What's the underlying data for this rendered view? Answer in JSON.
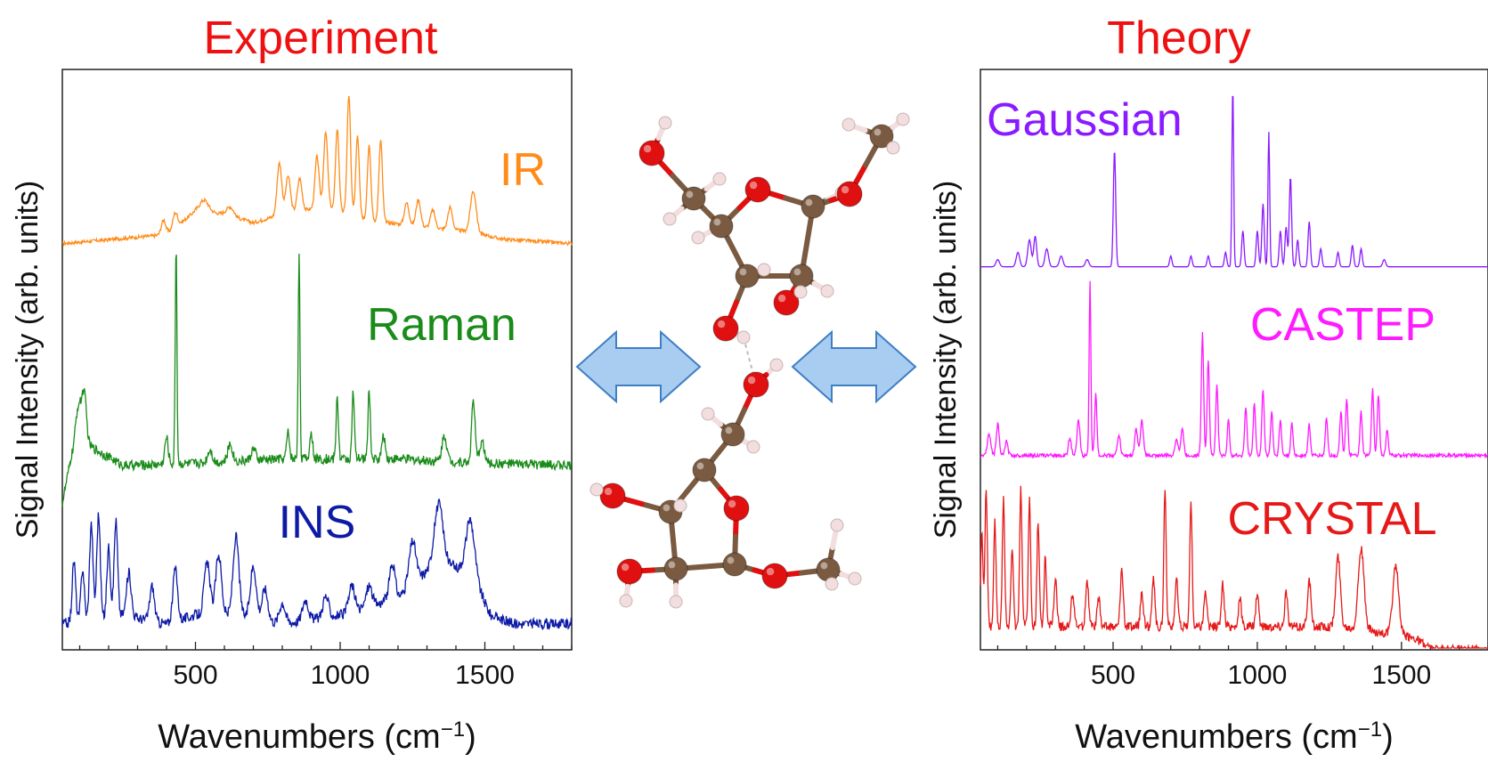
{
  "colors": {
    "IR": "#ff8c1a",
    "Raman": "#1a8c1a",
    "INS": "#0d1aa6",
    "Gaussian": "#8a1aff",
    "CASTEP": "#ff1aff",
    "CRYSTAL": "#e61919",
    "title": "#ee1111",
    "arrow_fill": "#a8cdf0",
    "arrow_stroke": "#3f7fc4",
    "carbon": "#7a5a40",
    "oxygen": "#e01010",
    "hydrogen": "#f2dede"
  },
  "chart_data": [
    {
      "type": "line",
      "title": "Experiment",
      "xlabel": "Wavenumbers (cm⁻¹)",
      "ylabel": "Signal Intensity (arb. units)",
      "xlim": [
        40,
        1800
      ],
      "xticks": [
        "500",
        "1000",
        "1500"
      ],
      "yticks": false,
      "series": [
        {
          "name": "IR",
          "offset": 0.7,
          "scale": 0.255,
          "baseline": [
            [
              40,
              0.0
            ],
            [
              400,
              0.06
            ],
            [
              500,
              0.22
            ],
            [
              600,
              0.2
            ],
            [
              700,
              0.14
            ],
            [
              800,
              0.2
            ],
            [
              950,
              0.25
            ],
            [
              1100,
              0.16
            ],
            [
              1250,
              0.12
            ],
            [
              1450,
              0.08
            ],
            [
              1560,
              0.03
            ],
            [
              1800,
              0.0
            ]
          ],
          "peaks": [
            [
              390,
              0.1,
              8
            ],
            [
              430,
              0.1,
              8
            ],
            [
              530,
              0.08,
              15
            ],
            [
              620,
              0.06,
              12
            ],
            [
              790,
              0.35,
              8
            ],
            [
              820,
              0.25,
              8
            ],
            [
              860,
              0.22,
              8
            ],
            [
              920,
              0.35,
              7
            ],
            [
              950,
              0.5,
              7
            ],
            [
              990,
              0.55,
              6
            ],
            [
              1030,
              0.8,
              6
            ],
            [
              1060,
              0.55,
              6
            ],
            [
              1100,
              0.5,
              6
            ],
            [
              1140,
              0.55,
              6
            ],
            [
              1230,
              0.15,
              8
            ],
            [
              1270,
              0.18,
              8
            ],
            [
              1320,
              0.12,
              8
            ],
            [
              1380,
              0.15,
              8
            ],
            [
              1460,
              0.28,
              10
            ]
          ],
          "noise": 0.012
        },
        {
          "name": "Raman",
          "offset": 0.31,
          "scale": 0.38,
          "baseline": [
            [
              40,
              -0.15
            ],
            [
              70,
              0.05
            ],
            [
              120,
              0.12
            ],
            [
              250,
              0.02
            ],
            [
              500,
              0.03
            ],
            [
              800,
              0.05
            ],
            [
              1200,
              0.05
            ],
            [
              1500,
              0.03
            ],
            [
              1800,
              0.02
            ]
          ],
          "peaks": [
            [
              95,
              0.2,
              10
            ],
            [
              115,
              0.22,
              8
            ],
            [
              400,
              0.12,
              6
            ],
            [
              433,
              1.0,
              3
            ],
            [
              550,
              0.06,
              8
            ],
            [
              620,
              0.08,
              8
            ],
            [
              700,
              0.05,
              8
            ],
            [
              820,
              0.12,
              5
            ],
            [
              858,
              0.95,
              3
            ],
            [
              900,
              0.12,
              5
            ],
            [
              990,
              0.28,
              4
            ],
            [
              1045,
              0.3,
              4
            ],
            [
              1100,
              0.32,
              4
            ],
            [
              1150,
              0.1,
              6
            ],
            [
              1360,
              0.12,
              8
            ],
            [
              1460,
              0.28,
              6
            ],
            [
              1490,
              0.1,
              8
            ]
          ],
          "noise": 0.022
        },
        {
          "name": "INS",
          "offset": 0.03,
          "scale": 0.3,
          "baseline": [
            [
              40,
              0.05
            ],
            [
              250,
              0.1
            ],
            [
              400,
              0.05
            ],
            [
              500,
              0.1
            ],
            [
              650,
              0.1
            ],
            [
              800,
              0.05
            ],
            [
              1000,
              0.1
            ],
            [
              1200,
              0.2
            ],
            [
              1300,
              0.35
            ],
            [
              1350,
              0.4
            ],
            [
              1450,
              0.35
            ],
            [
              1520,
              0.1
            ],
            [
              1600,
              0.05
            ],
            [
              1800,
              0.05
            ]
          ],
          "peaks": [
            [
              80,
              0.35,
              6
            ],
            [
              110,
              0.3,
              6
            ],
            [
              140,
              0.55,
              6
            ],
            [
              165,
              0.6,
              6
            ],
            [
              200,
              0.4,
              6
            ],
            [
              225,
              0.55,
              6
            ],
            [
              270,
              0.25,
              8
            ],
            [
              350,
              0.2,
              8
            ],
            [
              430,
              0.3,
              8
            ],
            [
              540,
              0.3,
              10
            ],
            [
              580,
              0.35,
              10
            ],
            [
              640,
              0.45,
              10
            ],
            [
              700,
              0.3,
              10
            ],
            [
              740,
              0.18,
              10
            ],
            [
              800,
              0.12,
              10
            ],
            [
              880,
              0.12,
              10
            ],
            [
              950,
              0.12,
              10
            ],
            [
              1040,
              0.15,
              10
            ],
            [
              1100,
              0.12,
              10
            ],
            [
              1180,
              0.2,
              10
            ],
            [
              1250,
              0.25,
              12
            ],
            [
              1340,
              0.35,
              15
            ],
            [
              1450,
              0.3,
              15
            ]
          ],
          "noise": 0.03
        }
      ]
    },
    {
      "type": "line",
      "title": "Theory",
      "xlabel": "Wavenumbers (cm⁻¹)",
      "ylabel": "Signal Intensity (arb. units)",
      "xlim": [
        40,
        1800
      ],
      "xticks": [
        "500",
        "1000",
        "1500"
      ],
      "yticks": false,
      "series": [
        {
          "name": "Gaussian",
          "offset": 0.66,
          "scale": 0.31,
          "baseline": [
            [
              40,
              0.0
            ],
            [
              1800,
              0.0
            ]
          ],
          "peaks": [
            [
              100,
              0.04,
              6
            ],
            [
              170,
              0.08,
              6
            ],
            [
              210,
              0.15,
              6
            ],
            [
              230,
              0.17,
              5
            ],
            [
              270,
              0.1,
              6
            ],
            [
              320,
              0.06,
              6
            ],
            [
              410,
              0.04,
              6
            ],
            [
              505,
              0.65,
              4
            ],
            [
              700,
              0.06,
              4
            ],
            [
              770,
              0.06,
              4
            ],
            [
              830,
              0.06,
              4
            ],
            [
              890,
              0.08,
              4
            ],
            [
              915,
              1.0,
              3
            ],
            [
              950,
              0.2,
              4
            ],
            [
              1000,
              0.2,
              4
            ],
            [
              1020,
              0.35,
              4
            ],
            [
              1040,
              0.75,
              3
            ],
            [
              1080,
              0.2,
              4
            ],
            [
              1100,
              0.22,
              4
            ],
            [
              1115,
              0.5,
              4
            ],
            [
              1140,
              0.15,
              4
            ],
            [
              1180,
              0.25,
              4
            ],
            [
              1220,
              0.1,
              4
            ],
            [
              1280,
              0.08,
              4
            ],
            [
              1330,
              0.12,
              4
            ],
            [
              1360,
              0.1,
              4
            ],
            [
              1440,
              0.04,
              5
            ]
          ],
          "noise": 0.0
        },
        {
          "name": "CASTEP",
          "offset": 0.335,
          "scale": 0.3,
          "baseline": [
            [
              40,
              0.0
            ],
            [
              1560,
              0.0
            ],
            [
              1800,
              0.0
            ]
          ],
          "peaks": [
            [
              70,
              0.12,
              6
            ],
            [
              100,
              0.18,
              5
            ],
            [
              130,
              0.08,
              5
            ],
            [
              350,
              0.1,
              5
            ],
            [
              380,
              0.2,
              5
            ],
            [
              420,
              1.0,
              3
            ],
            [
              440,
              0.35,
              4
            ],
            [
              520,
              0.12,
              5
            ],
            [
              580,
              0.15,
              5
            ],
            [
              600,
              0.2,
              5
            ],
            [
              720,
              0.1,
              5
            ],
            [
              740,
              0.15,
              5
            ],
            [
              810,
              0.7,
              4
            ],
            [
              830,
              0.55,
              4
            ],
            [
              860,
              0.4,
              4
            ],
            [
              900,
              0.2,
              4
            ],
            [
              960,
              0.28,
              4
            ],
            [
              990,
              0.3,
              4
            ],
            [
              1020,
              0.38,
              4
            ],
            [
              1050,
              0.25,
              4
            ],
            [
              1080,
              0.2,
              4
            ],
            [
              1120,
              0.18,
              4
            ],
            [
              1180,
              0.18,
              4
            ],
            [
              1240,
              0.22,
              4
            ],
            [
              1290,
              0.25,
              4
            ],
            [
              1310,
              0.32,
              4
            ],
            [
              1360,
              0.25,
              4
            ],
            [
              1400,
              0.38,
              4
            ],
            [
              1420,
              0.35,
              4
            ],
            [
              1450,
              0.15,
              4
            ]
          ],
          "noise": 0.01
        },
        {
          "name": "CRYSTAL",
          "offset": 0.0,
          "scale": 0.4,
          "baseline": [
            [
              40,
              0.1
            ],
            [
              1300,
              0.1
            ],
            [
              1550,
              0.05
            ],
            [
              1600,
              0.0
            ],
            [
              1800,
              0.0
            ]
          ],
          "peaks": [
            [
              45,
              0.4,
              4
            ],
            [
              60,
              0.6,
              4
            ],
            [
              90,
              0.45,
              4
            ],
            [
              120,
              0.55,
              4
            ],
            [
              150,
              0.35,
              4
            ],
            [
              180,
              0.6,
              4
            ],
            [
              210,
              0.55,
              4
            ],
            [
              240,
              0.45,
              4
            ],
            [
              265,
              0.3,
              4
            ],
            [
              300,
              0.2,
              5
            ],
            [
              360,
              0.15,
              5
            ],
            [
              410,
              0.2,
              5
            ],
            [
              450,
              0.12,
              5
            ],
            [
              530,
              0.25,
              5
            ],
            [
              600,
              0.15,
              5
            ],
            [
              640,
              0.2,
              5
            ],
            [
              680,
              0.6,
              4
            ],
            [
              720,
              0.2,
              5
            ],
            [
              770,
              0.55,
              4
            ],
            [
              820,
              0.15,
              5
            ],
            [
              880,
              0.18,
              5
            ],
            [
              940,
              0.12,
              5
            ],
            [
              1000,
              0.15,
              5
            ],
            [
              1100,
              0.15,
              5
            ],
            [
              1180,
              0.2,
              6
            ],
            [
              1280,
              0.3,
              8
            ],
            [
              1360,
              0.35,
              10
            ],
            [
              1480,
              0.3,
              10
            ]
          ],
          "noise": 0.02
        }
      ]
    }
  ]
}
